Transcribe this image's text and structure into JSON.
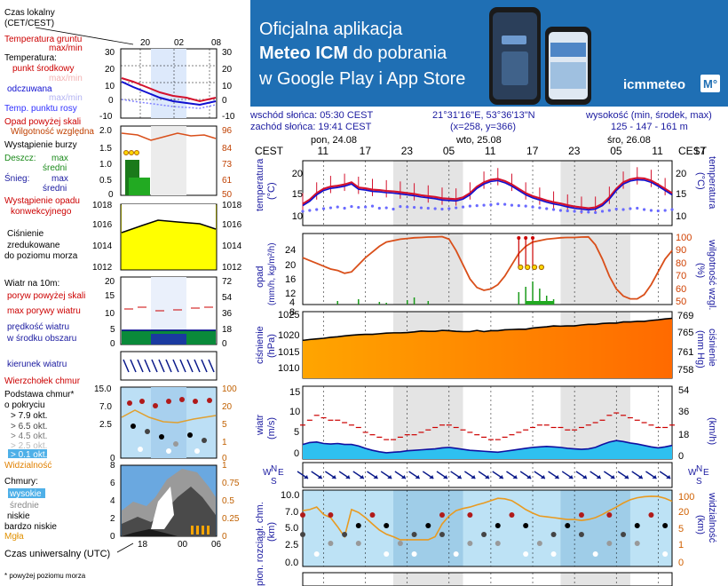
{
  "banner": {
    "line1": "Oficjalna aplikacja",
    "line2a": "Meteo ICM",
    "line2b": " do pobrania",
    "line3": "w Google Play i App Store",
    "logo": "icmmeteo",
    "logo_badge": "M°",
    "bg_color": "#1f6fb4"
  },
  "legend": {
    "local_time": "Czas lokalny",
    "local_time2": "(CET/CEST)",
    "top_ticks": [
      "20",
      "02",
      "08"
    ],
    "bottom_ticks": [
      "18",
      "00",
      "06"
    ],
    "utc": "Czas uniwersalny (UTC)",
    "footnote": "* powyżej poziomu morza",
    "temp": {
      "soil": "Temperatura gruntu",
      "soil_maxmin": "max/min",
      "temperature": "Temperatura:",
      "mid": "punkt środkowy",
      "mid_maxmin": "max/min",
      "feels": "odczuwana",
      "feels_maxmin": "max/min",
      "dew": "Temp. punktu rosy",
      "ticks": [
        "30",
        "20",
        "10",
        "0",
        "-10"
      ]
    },
    "precip": {
      "above": "Opad powyżej skali",
      "rh": "Wilgotność względna",
      "storm": "Wystąpienie burzy",
      "rain": "Deszcz:",
      "max": "max",
      "mean": "średni",
      "snow": "Śnieg:",
      "occurrence": "Wystąpienie opadu",
      "convective": "konwekcyjnego",
      "left_ticks": [
        "2.0",
        "1.5",
        "1.0",
        "0.5",
        "0"
      ],
      "right_ticks": [
        "96",
        "84",
        "73",
        "61",
        "50"
      ]
    },
    "pressure": {
      "label1": "Ciśnienie",
      "label2": "zredukowane",
      "label3": "do poziomu morza",
      "ticks": [
        "1018",
        "1016",
        "1014",
        "1012"
      ]
    },
    "wind": {
      "at10m": "Wiatr na 10m:",
      "gust_above": "poryw powyżej skali",
      "gust_max": "max porywy wiatru",
      "speed": "prędkość wiatru",
      "speed2": "w środku obszaru",
      "left_ticks": [
        "20",
        "15",
        "10",
        "5",
        "0"
      ],
      "right_ticks": [
        "72",
        "54",
        "36",
        "18",
        "0"
      ]
    },
    "direction": {
      "label": "kierunek wiatru"
    },
    "clouds": {
      "top": "Wierzchołek chmur",
      "base": "Podstawa chmur*",
      "base2": "o pokryciu",
      "okt": [
        "> 7.9 okt.",
        "> 6.5 okt.",
        "> 4.5 okt.",
        "> 2.5 okt.",
        "> 0.1 okt."
      ],
      "visibility": "Widzialność",
      "left_ticks": [
        "15.0",
        "7.0",
        "2.5",
        "0"
      ],
      "right_ticks": [
        "100",
        "20",
        "5",
        "1",
        "0"
      ]
    },
    "cover": {
      "label": "Chmury:",
      "high": "wysokie",
      "mid": "średnie",
      "low": "niskie",
      "very_low": "bardzo niskie",
      "fog": "Mgła",
      "left_ticks": [
        "8",
        "6",
        "4",
        "2",
        "0"
      ],
      "right_ticks": [
        "1",
        "0.75",
        "0.5",
        "0.25",
        "0"
      ]
    }
  },
  "header": {
    "sunrise": "wschód słońca: 05:30 CEST",
    "sunset": "zachód słońca: 19:41 CEST",
    "coords": "21°31'16\"E, 53°36'13\"N",
    "grid": "(x=258,  y=366)",
    "elev_title": "wysokość (min, środek, max)",
    "elev": "125 - 147 - 161 m"
  },
  "timeline": {
    "days": [
      "pon, 24.08",
      "wto, 25.08",
      "śro, 26.08"
    ],
    "tz": "CEST",
    "hours": [
      "11",
      "17",
      "23",
      "05",
      "11",
      "17",
      "23",
      "05",
      "11",
      "17"
    ]
  },
  "panels": {
    "temperature": {
      "label": "temperatura",
      "unit_l": "(°C)",
      "unit_r": "(°C)",
      "ticks": [
        "20",
        "15",
        "10"
      ]
    },
    "precip": {
      "label": "opad",
      "unit_l": "(mm/h, kg/m²/h)",
      "label_r": "wilgotność wzgl.",
      "unit_r": "(%)",
      "left_ticks": [
        "24",
        "20",
        "16",
        "12",
        "8",
        "4"
      ],
      "right_ticks": [
        "100",
        "90",
        "80",
        "70",
        "60",
        "50"
      ]
    },
    "pressure": {
      "label": "ciśnienie",
      "unit_l": "(hPa)",
      "label_r": "ciśnienie",
      "unit_r": "(mm Hg)",
      "left_ticks": [
        "1025",
        "1020",
        "1015",
        "1010"
      ],
      "right_ticks": [
        "769",
        "765",
        "761",
        "758"
      ]
    },
    "wind": {
      "label": "wiatr",
      "unit_l": "(m/s)",
      "unit_r": "(km/h)",
      "left_ticks": [
        "15",
        "10",
        "5",
        "0"
      ],
      "right_ticks": [
        "54",
        "36",
        "18",
        "0"
      ]
    },
    "clouds": {
      "label": "pion. rozciągł. chm.",
      "unit_l": "(km)",
      "label_r": "widzialność",
      "unit_r": "(km)",
      "left_ticks": [
        "10.0",
        "7.0",
        "5.0",
        "2.5",
        "0.0"
      ],
      "right_ticks": [
        "100",
        "20",
        "5",
        "1",
        "0"
      ]
    },
    "compass": {
      "w": "W",
      "n": "N",
      "e": "E",
      "s": "S"
    }
  },
  "chart_data": [
    {
      "type": "line",
      "title": "temperatura",
      "x_unit": "hour offset from 24.08 08:00 CEST",
      "ylim": [
        8,
        23
      ],
      "series": [
        {
          "name": "punkt środkowy",
          "values": [
            13,
            14,
            15.5,
            16.5,
            17,
            17.2,
            17.5,
            18,
            16.8,
            16.6,
            16.3,
            16.2,
            16,
            15.9,
            15.7,
            15.5,
            15.3,
            15,
            14.8,
            14.6,
            14.3,
            14.2,
            14.1,
            14.5,
            15.5,
            17,
            18,
            18.6,
            18.8,
            18.3,
            17.5,
            16.5,
            15.5,
            14.8,
            14.3,
            13.8,
            13.4,
            13.1,
            12.7,
            12.4,
            12.2,
            12,
            12.2,
            13,
            14.5,
            16.5,
            18,
            18.7,
            19,
            18.9,
            18.4,
            17.5,
            16.5,
            15.5
          ]
        },
        {
          "name": "temperatura punktu rosy",
          "values": [
            11.8,
            12,
            12.2,
            12.4,
            12.6,
            12.8,
            12.5,
            12.9,
            12.7,
            12.8,
            13,
            12.5,
            12.6,
            12.3,
            12.9,
            12.8,
            12.7,
            12.6,
            12.5,
            12.4,
            12.3,
            12.4,
            12.6,
            12.8,
            13,
            13.1,
            13.2,
            13.3,
            13.5,
            13.4,
            13.2,
            13.1,
            13,
            12.8,
            12.6,
            12.4,
            12.2,
            12,
            11.9,
            11.8,
            11.7,
            11.6,
            11.5,
            11.8,
            12,
            12.3,
            12.2,
            12.4,
            12.5,
            12.2,
            12,
            11.9,
            12,
            12.2
          ]
        }
      ]
    },
    {
      "type": "line",
      "title": "wilgotność wzgl.",
      "ylim": [
        50,
        100
      ],
      "values": [
        83,
        81,
        79,
        77,
        75,
        74,
        72,
        73,
        78,
        83,
        87,
        91,
        94,
        95,
        96,
        96.5,
        97,
        97.2,
        97.5,
        97.6,
        97.8,
        96,
        88,
        78,
        68,
        62,
        60,
        61,
        64,
        70,
        78,
        86,
        91,
        94,
        95,
        96,
        96.5,
        97,
        97.2,
        97.2,
        97.5,
        97.6,
        92,
        82,
        70,
        61,
        56,
        54,
        54,
        57,
        64,
        73,
        82,
        88
      ]
    },
    {
      "type": "line",
      "title": "ciśnienie",
      "ylim": [
        1005,
        1027
      ],
      "values": [
        1017.5,
        1017.8,
        1018,
        1018.2,
        1018.5,
        1018.7,
        1019,
        1019.2,
        1019.4,
        1019.5,
        1019.5,
        1019.7,
        1019.9,
        1020,
        1020,
        1020.1,
        1020.3,
        1020.6,
        1020.5,
        1020.5,
        1020.8,
        1020.7,
        1020.5,
        1020.4,
        1020.4,
        1020.8,
        1020.4,
        1020.7,
        1020.7,
        1021,
        1021.1,
        1021.2,
        1021.2,
        1021.6,
        1021.8,
        1022,
        1022.3,
        1022.2,
        1022.3,
        1022.3,
        1022.6,
        1022.8,
        1022.8,
        1023.1,
        1023.2,
        1023.2,
        1023.6,
        1023.6,
        1023.8,
        1023.8,
        1024.1,
        1024.3,
        1024.6,
        1024.8
      ]
    },
    {
      "type": "line",
      "title": "wiatr",
      "ylim": [
        0,
        15
      ],
      "series": [
        {
          "name": "prędkość wiatru",
          "values": [
            3,
            3.4,
            3.5,
            3.2,
            3.1,
            3.2,
            3,
            3,
            2.7,
            2.2,
            1.8,
            1.5,
            1.3,
            1.4,
            1.5,
            1.7,
            1.8,
            1.9,
            2,
            2.1,
            2.3,
            2.4,
            2.2,
            2,
            1.8,
            1.7,
            1.6,
            1.5,
            1.4,
            1.6,
            1.8,
            2,
            2.2,
            2.4,
            2.5,
            2.6,
            2.5,
            2.4,
            2.2,
            2.1,
            2,
            2.1,
            2.4,
            3,
            3.5,
            3.8,
            3.6,
            3.3,
            3.1,
            2.8,
            2.5,
            2.3,
            2.5,
            2.8
          ]
        },
        {
          "name": "max porywy wiatru",
          "values": [
            7,
            8,
            9,
            8.5,
            8,
            8,
            7.5,
            7,
            6.5,
            5.5,
            5,
            4.5,
            4,
            4,
            4.5,
            5,
            5,
            5.5,
            6,
            6.5,
            7,
            7,
            6.5,
            6,
            5.5,
            5,
            4.5,
            4,
            4,
            4.5,
            5,
            5.5,
            6,
            6.5,
            7,
            7,
            6.5,
            6.5,
            6,
            6,
            6.5,
            7,
            7.5,
            8,
            9,
            9.5,
            9,
            8.5,
            8,
            7.5,
            7,
            6.5,
            6.5,
            7
          ]
        }
      ]
    },
    {
      "type": "line",
      "title": "widzialność",
      "ylim": [
        0,
        100
      ],
      "values": [
        28,
        30,
        35,
        22,
        18,
        10,
        5,
        30,
        25,
        18,
        12,
        8,
        6,
        5,
        4,
        4,
        4,
        4,
        4,
        5,
        12,
        20,
        28,
        32,
        35,
        40,
        45,
        52,
        60,
        58,
        52,
        40,
        30,
        24,
        20,
        19,
        18,
        17,
        16,
        16,
        15,
        16,
        18,
        22,
        28,
        35,
        45,
        55,
        62,
        66,
        68,
        67,
        60,
        50
      ]
    }
  ]
}
